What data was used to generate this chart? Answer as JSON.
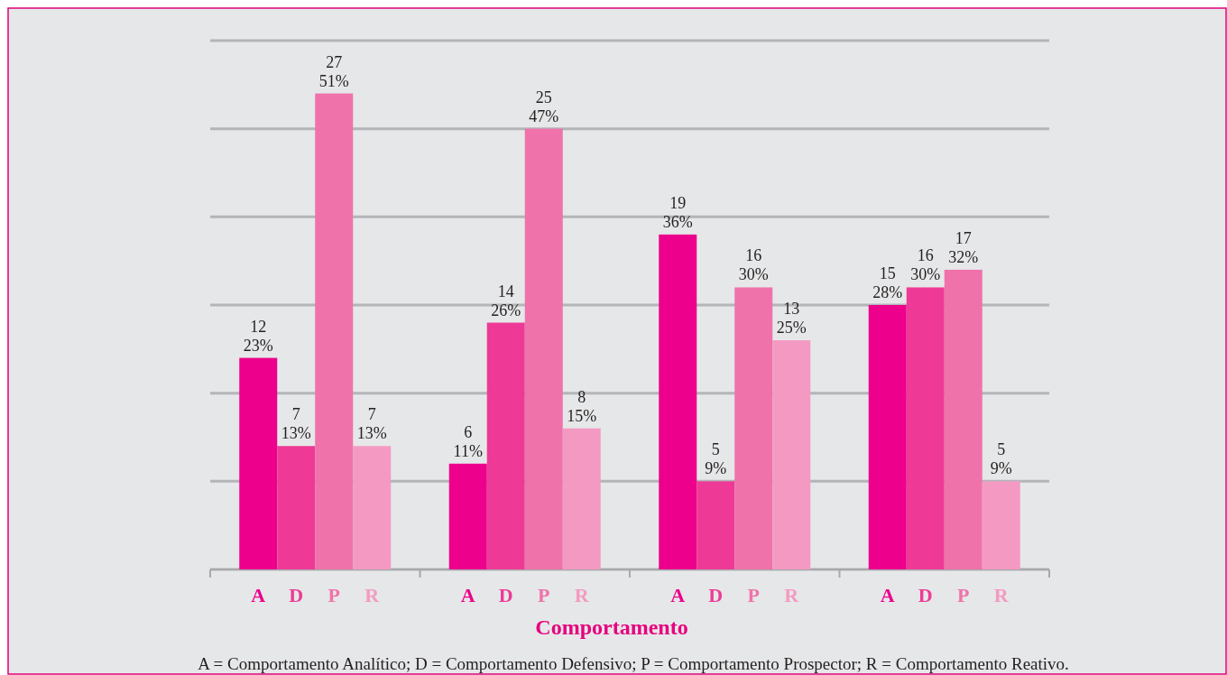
{
  "chart_data": {
    "type": "bar",
    "xlabel": "Comportamento",
    "categories": [
      null,
      null,
      null,
      null
    ],
    "series": [
      {
        "name": "A",
        "color": "#ec008c",
        "values": [
          12,
          6,
          19,
          15
        ],
        "value_labels": [
          "12\n23%",
          "6\n11%",
          "19\n36%",
          "15\n28%"
        ]
      },
      {
        "name": "D",
        "color": "#ee3a96",
        "values": [
          7,
          14,
          5,
          16
        ],
        "value_labels": [
          "7\n13%",
          "14\n26%",
          "5\n9%",
          "16\n30%"
        ]
      },
      {
        "name": "P",
        "color": "#f072aa",
        "values": [
          27,
          25,
          16,
          17
        ],
        "value_labels": [
          "27\n51%",
          "25\n47%",
          "16\n30%",
          "17\n32%"
        ]
      },
      {
        "name": "R",
        "color": "#f49ac2",
        "values": [
          7,
          8,
          13,
          5
        ],
        "value_labels": [
          "7\n13%",
          "8\n15%",
          "13\n25%",
          "5\n9%"
        ]
      }
    ],
    "ylim": [
      0,
      30
    ],
    "yticks": [
      {
        "value": 0,
        "label": null
      },
      {
        "value": 5,
        "label": null
      },
      {
        "value": 10,
        "label": null
      },
      {
        "value": 15,
        "label": null
      },
      {
        "value": 20,
        "label": null
      },
      {
        "value": 25,
        "label": null
      },
      {
        "value": 30,
        "label": null
      }
    ],
    "grid": "y",
    "annotations": [
      "A = Comportamento Analítico; D = Comportamento Defensivo; P = Comportamento Prospector; R = Comportamento Reativo."
    ]
  }
}
